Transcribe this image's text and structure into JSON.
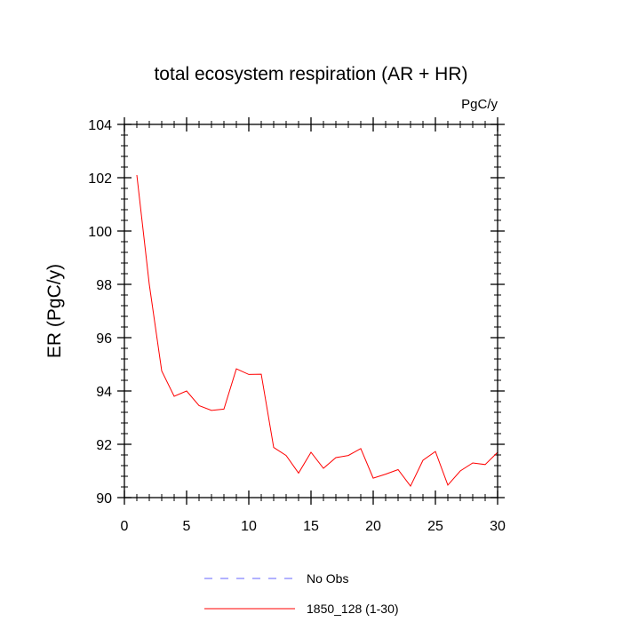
{
  "chart_data": {
    "type": "line",
    "title": "total ecosystem respiration (AR + HR)",
    "units": "PgC/y",
    "xlabel": "",
    "ylabel": "ER  (PgC/y)",
    "xlim": [
      0,
      30
    ],
    "ylim": [
      90,
      104
    ],
    "xticks": [
      0,
      5,
      10,
      15,
      20,
      25,
      30
    ],
    "yticks": [
      90,
      92,
      94,
      96,
      98,
      100,
      102,
      104
    ],
    "series": [
      {
        "name": "1850_128 (1-30)",
        "color": "#ff0000",
        "dash": "solid",
        "x": [
          1,
          2,
          3,
          4,
          5,
          6,
          7,
          8,
          9,
          10,
          11,
          12,
          13,
          14,
          15,
          16,
          17,
          18,
          19,
          20,
          21,
          22,
          23,
          24,
          25,
          26,
          27,
          28,
          29,
          30
        ],
        "y": [
          102.1,
          98.0,
          94.75,
          93.8,
          94.0,
          93.45,
          93.27,
          93.32,
          94.83,
          94.62,
          94.63,
          91.88,
          91.58,
          90.92,
          91.7,
          91.1,
          91.5,
          91.58,
          91.84,
          90.73,
          90.88,
          91.05,
          90.43,
          91.4,
          91.73,
          90.47,
          91.0,
          91.3,
          91.24,
          91.7
        ]
      }
    ],
    "legend": [
      {
        "label": "No Obs",
        "color": "#6666ff",
        "dash": "dashed"
      },
      {
        "label": "1850_128 (1-30)",
        "color": "#ff0000",
        "dash": "solid"
      }
    ]
  }
}
